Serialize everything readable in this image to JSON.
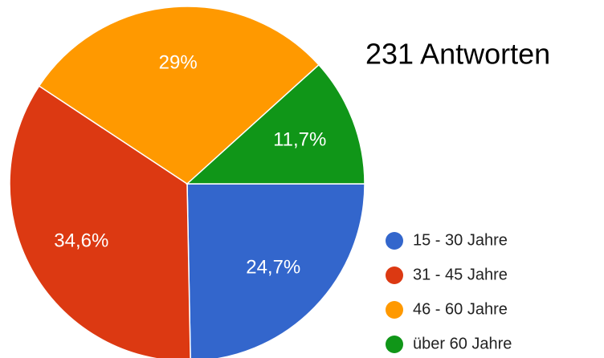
{
  "chart_data": {
    "type": "pie",
    "title": "231 Antworten",
    "categories": [
      "15 - 30 Jahre",
      "31 - 45 Jahre",
      "46 - 60 Jahre",
      "über 60 Jahre"
    ],
    "values": [
      24.7,
      34.6,
      29,
      11.7
    ],
    "value_labels": [
      "24,7%",
      "34,6%",
      "29%",
      "11,7%"
    ],
    "colors": [
      "#3366cc",
      "#dc3912",
      "#ff9900",
      "#109618"
    ],
    "legend": "right"
  }
}
